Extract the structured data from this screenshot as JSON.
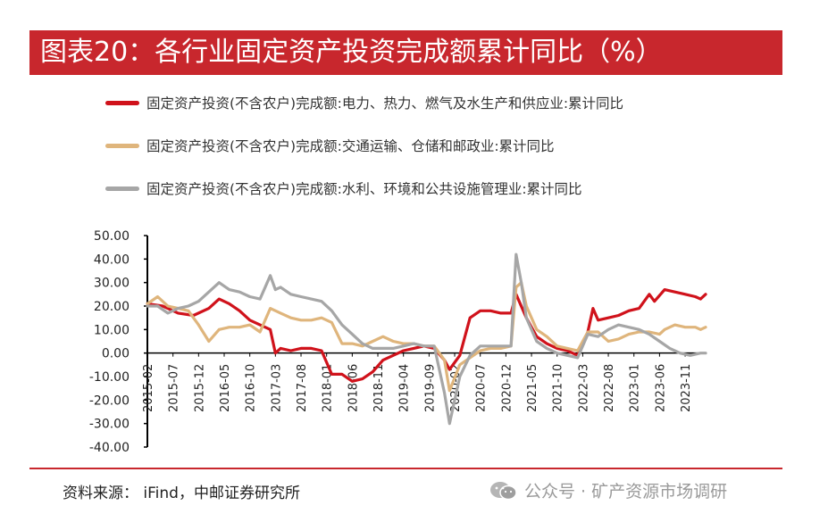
{
  "title": "图表20：各行业固定资产投资完成额累计同比（%）",
  "source": "资料来源：  iFind，中邮证券研究所",
  "watermark": "公众号 · 矿产资源市场调研",
  "watermark_icon": "wechat-icon",
  "colors": {
    "title_bg": "#c8272d",
    "red": "#d0121b",
    "tan": "#dfb57c",
    "gray": "#a6a6a6"
  },
  "chart_data": {
    "type": "line",
    "title": "",
    "xlabel": "",
    "ylabel": "",
    "ylim": [
      -40,
      50
    ],
    "yticks": [
      "50.00",
      "40.00",
      "30.00",
      "20.00",
      "10.00",
      "0.00",
      "-10.00",
      "-20.00",
      "-30.00",
      "-40.00"
    ],
    "xticks": [
      "2015-02",
      "2015-07",
      "2015-12",
      "2016-05",
      "2016-10",
      "2017-03",
      "2017-08",
      "2018-01",
      "2018-06",
      "2018-11",
      "2019-04",
      "2019-09",
      "2020-02",
      "2020-07",
      "2020-12",
      "2021-05",
      "2021-10",
      "2022-03",
      "2022-08",
      "2023-01",
      "2023-06",
      "2023-11"
    ],
    "grid": false,
    "legend_position": "top",
    "x_start": "2015-02",
    "x_end": "2024-02",
    "series": [
      {
        "name": "固定资产投资(不含农户)完成额:电力、热力、燃气及水生产和供应业:累计同比",
        "color": "#d0121b",
        "points": [
          [
            0,
            21
          ],
          [
            3,
            20
          ],
          [
            6,
            17
          ],
          [
            9,
            16
          ],
          [
            12,
            19
          ],
          [
            14,
            23
          ],
          [
            16,
            21
          ],
          [
            18,
            18
          ],
          [
            20,
            14
          ],
          [
            22,
            12
          ],
          [
            24,
            10
          ],
          [
            25,
            0
          ],
          [
            26,
            2
          ],
          [
            28,
            1
          ],
          [
            30,
            2
          ],
          [
            32,
            2
          ],
          [
            34,
            1
          ],
          [
            36,
            -9
          ],
          [
            38,
            -9
          ],
          [
            40,
            -12
          ],
          [
            42,
            -11
          ],
          [
            44,
            -8
          ],
          [
            46,
            -3
          ],
          [
            48,
            -1
          ],
          [
            50,
            1
          ],
          [
            52,
            2
          ],
          [
            54,
            3
          ],
          [
            56,
            2
          ],
          [
            58,
            -3
          ],
          [
            59,
            -7
          ],
          [
            61,
            -1
          ],
          [
            63,
            15
          ],
          [
            65,
            18
          ],
          [
            67,
            18
          ],
          [
            69,
            17
          ],
          [
            71,
            17
          ],
          [
            72,
            25
          ],
          [
            74,
            15
          ],
          [
            76,
            7
          ],
          [
            78,
            4
          ],
          [
            80,
            2
          ],
          [
            82,
            1
          ],
          [
            84,
            -1
          ],
          [
            86,
            9
          ],
          [
            87,
            19
          ],
          [
            88,
            14
          ],
          [
            90,
            15
          ],
          [
            92,
            16
          ],
          [
            94,
            18
          ],
          [
            96,
            19
          ],
          [
            98,
            25
          ],
          [
            99,
            22
          ],
          [
            101,
            27
          ],
          [
            103,
            26
          ],
          [
            105,
            25
          ],
          [
            107,
            24
          ],
          [
            108,
            23
          ],
          [
            109,
            25
          ]
        ]
      },
      {
        "name": "固定资产投资(不含农户)完成额:交通运输、仓储和邮政业:累计同比",
        "color": "#dfb57c",
        "points": [
          [
            0,
            21
          ],
          [
            2,
            24
          ],
          [
            4,
            20
          ],
          [
            6,
            19
          ],
          [
            8,
            18
          ],
          [
            10,
            12
          ],
          [
            12,
            5
          ],
          [
            14,
            10
          ],
          [
            16,
            11
          ],
          [
            18,
            11
          ],
          [
            20,
            12
          ],
          [
            22,
            9
          ],
          [
            24,
            19
          ],
          [
            26,
            17
          ],
          [
            28,
            15
          ],
          [
            30,
            14
          ],
          [
            32,
            14
          ],
          [
            34,
            15
          ],
          [
            36,
            13
          ],
          [
            38,
            4
          ],
          [
            40,
            4
          ],
          [
            42,
            3
          ],
          [
            44,
            5
          ],
          [
            46,
            7
          ],
          [
            48,
            5
          ],
          [
            50,
            4
          ],
          [
            52,
            4
          ],
          [
            54,
            3
          ],
          [
            56,
            3
          ],
          [
            58,
            -3
          ],
          [
            59,
            -16
          ],
          [
            61,
            -5
          ],
          [
            63,
            -2
          ],
          [
            65,
            1
          ],
          [
            67,
            2
          ],
          [
            69,
            2
          ],
          [
            71,
            3
          ],
          [
            72,
            28
          ],
          [
            73,
            30
          ],
          [
            74,
            20
          ],
          [
            76,
            10
          ],
          [
            78,
            7
          ],
          [
            80,
            3
          ],
          [
            82,
            2
          ],
          [
            84,
            1
          ],
          [
            86,
            9
          ],
          [
            88,
            9
          ],
          [
            90,
            5
          ],
          [
            92,
            6
          ],
          [
            94,
            8
          ],
          [
            96,
            9
          ],
          [
            98,
            9
          ],
          [
            100,
            8
          ],
          [
            101,
            10
          ],
          [
            103,
            12
          ],
          [
            105,
            11
          ],
          [
            107,
            11
          ],
          [
            108,
            10
          ],
          [
            109,
            11
          ]
        ]
      },
      {
        "name": "固定资产投资(不含农户)完成额:水利、环境和公共设施管理业:累计同比",
        "color": "#a6a6a6",
        "points": [
          [
            0,
            20
          ],
          [
            2,
            20
          ],
          [
            4,
            17
          ],
          [
            6,
            19
          ],
          [
            8,
            20
          ],
          [
            10,
            22
          ],
          [
            12,
            26
          ],
          [
            14,
            30
          ],
          [
            16,
            27
          ],
          [
            18,
            26
          ],
          [
            20,
            24
          ],
          [
            22,
            23
          ],
          [
            24,
            33
          ],
          [
            25,
            27
          ],
          [
            26,
            28
          ],
          [
            28,
            25
          ],
          [
            30,
            24
          ],
          [
            32,
            23
          ],
          [
            34,
            22
          ],
          [
            36,
            18
          ],
          [
            38,
            12
          ],
          [
            40,
            8
          ],
          [
            42,
            4
          ],
          [
            44,
            2
          ],
          [
            46,
            2
          ],
          [
            48,
            2
          ],
          [
            50,
            3
          ],
          [
            52,
            4
          ],
          [
            54,
            3
          ],
          [
            56,
            3
          ],
          [
            58,
            -17
          ],
          [
            59,
            -30
          ],
          [
            61,
            -10
          ],
          [
            63,
            -1
          ],
          [
            65,
            3
          ],
          [
            67,
            3
          ],
          [
            69,
            3
          ],
          [
            71,
            3
          ],
          [
            72,
            42
          ],
          [
            73,
            30
          ],
          [
            74,
            15
          ],
          [
            76,
            5
          ],
          [
            78,
            2
          ],
          [
            80,
            0
          ],
          [
            82,
            -1
          ],
          [
            84,
            -2
          ],
          [
            86,
            8
          ],
          [
            88,
            7
          ],
          [
            90,
            10
          ],
          [
            92,
            12
          ],
          [
            94,
            11
          ],
          [
            96,
            10
          ],
          [
            98,
            8
          ],
          [
            100,
            5
          ],
          [
            102,
            2
          ],
          [
            104,
            0
          ],
          [
            106,
            -1
          ],
          [
            108,
            0
          ],
          [
            109,
            0
          ]
        ]
      }
    ]
  }
}
